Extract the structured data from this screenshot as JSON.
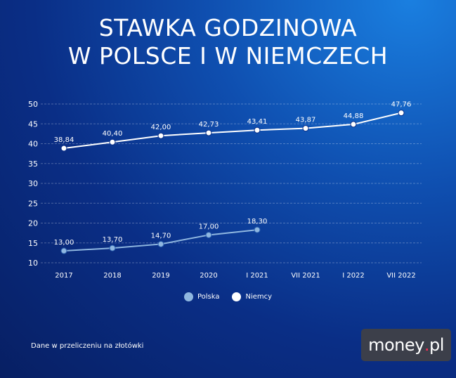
{
  "title_lines": [
    "STAWKA GODZINOWA",
    "W POLSCE I W NIEMCZECH"
  ],
  "footnote": "Dane w przeliczeniu na złotówki",
  "logo": {
    "name": "money",
    "dot": ".",
    "tld": "pl"
  },
  "chart_data": {
    "type": "line",
    "categories": [
      "2017",
      "2018",
      "2019",
      "2020",
      "I 2021",
      "VII 2021",
      "I 2022",
      "VII 2022"
    ],
    "yticks": [
      10,
      15,
      20,
      25,
      30,
      35,
      40,
      45,
      50
    ],
    "ylim": [
      10,
      50
    ],
    "grid": true,
    "legend_position": "bottom-center",
    "series": [
      {
        "name": "Polska",
        "color": "#8fb7e0",
        "line_color": "#8fb7e0",
        "values": [
          13.0,
          13.7,
          14.7,
          17.0,
          18.3,
          null,
          null,
          null
        ],
        "labels": [
          "13,00",
          "13,70",
          "14,70",
          "17,00",
          "18,30",
          null,
          null,
          null
        ]
      },
      {
        "name": "Niemcy",
        "color": "#ffffff",
        "line_color": "#ffffff",
        "values": [
          38.84,
          40.4,
          42.0,
          42.73,
          43.41,
          43.87,
          44.88,
          47.76
        ],
        "labels": [
          "38,84",
          "40,40",
          "42,00",
          "42,73",
          "43,41",
          "43,87",
          "44,88",
          "47,76"
        ]
      }
    ]
  }
}
